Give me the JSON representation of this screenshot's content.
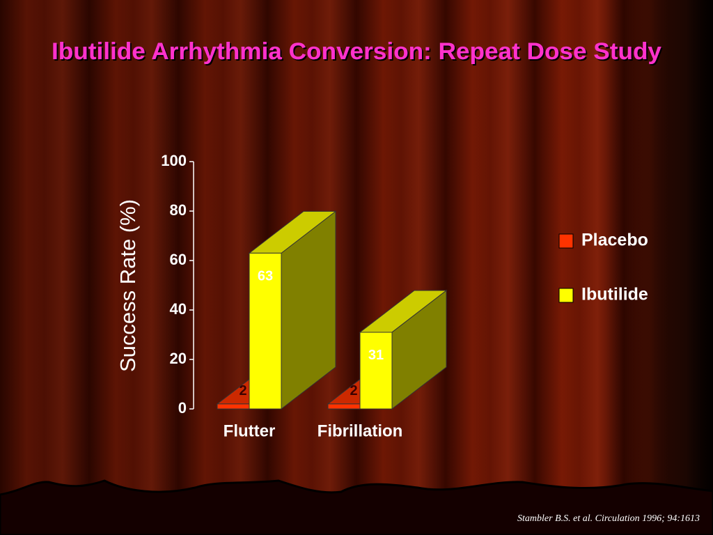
{
  "chart_data": {
    "type": "bar3d",
    "title": "Ibutilide Arrhythmia Conversion:  Repeat Dose Study",
    "y_label": "Success Rate (%)",
    "source": "Stambler B.S. et al. Circulation 1996; 94:1613",
    "categories": [
      "Flutter",
      "Fibrillation"
    ],
    "series": [
      {
        "name": "Placebo",
        "color": "#ff3300",
        "values": [
          2,
          2
        ]
      },
      {
        "name": "Ibutilide",
        "color": "#ffff00",
        "values": [
          63,
          31
        ]
      }
    ],
    "ylim": [
      0,
      100
    ],
    "yticks": [
      0,
      20,
      40,
      60,
      80,
      100
    ],
    "grid": false,
    "legend": "right"
  }
}
